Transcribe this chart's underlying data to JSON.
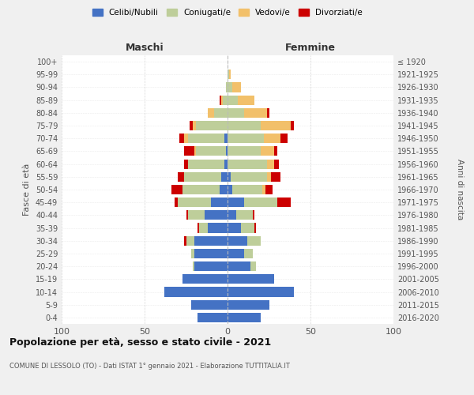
{
  "age_groups": [
    "0-4",
    "5-9",
    "10-14",
    "15-19",
    "20-24",
    "25-29",
    "30-34",
    "35-39",
    "40-44",
    "45-49",
    "50-54",
    "55-59",
    "60-64",
    "65-69",
    "70-74",
    "75-79",
    "80-84",
    "85-89",
    "90-94",
    "95-99",
    "100+"
  ],
  "birth_years": [
    "2016-2020",
    "2011-2015",
    "2006-2010",
    "2001-2005",
    "1996-2000",
    "1991-1995",
    "1986-1990",
    "1981-1985",
    "1976-1980",
    "1971-1975",
    "1966-1970",
    "1961-1965",
    "1956-1960",
    "1951-1955",
    "1946-1950",
    "1941-1945",
    "1936-1940",
    "1931-1935",
    "1926-1930",
    "1921-1925",
    "≤ 1920"
  ],
  "colors": {
    "celibi": "#4472C4",
    "coniugati": "#BECE9A",
    "vedovi": "#F2C06A",
    "divorziati": "#CC0000"
  },
  "maschi": {
    "celibi": [
      18,
      22,
      38,
      27,
      20,
      20,
      20,
      12,
      14,
      10,
      5,
      4,
      2,
      1,
      2,
      0,
      0,
      0,
      0,
      0,
      0
    ],
    "coniugati": [
      0,
      0,
      0,
      0,
      1,
      2,
      5,
      5,
      10,
      20,
      22,
      22,
      22,
      18,
      22,
      19,
      8,
      3,
      1,
      0,
      0
    ],
    "vedovi": [
      0,
      0,
      0,
      0,
      0,
      0,
      0,
      0,
      0,
      0,
      0,
      0,
      0,
      1,
      2,
      2,
      4,
      1,
      0,
      0,
      0
    ],
    "divorziati": [
      0,
      0,
      0,
      0,
      0,
      0,
      1,
      1,
      1,
      2,
      7,
      4,
      2,
      6,
      3,
      2,
      0,
      1,
      0,
      0,
      0
    ]
  },
  "femmine": {
    "nubili": [
      20,
      25,
      40,
      28,
      14,
      10,
      12,
      8,
      5,
      10,
      3,
      2,
      0,
      0,
      0,
      0,
      0,
      0,
      0,
      0,
      0
    ],
    "coniugate": [
      0,
      0,
      0,
      0,
      3,
      5,
      8,
      8,
      10,
      20,
      18,
      22,
      24,
      20,
      22,
      20,
      10,
      6,
      3,
      1,
      0
    ],
    "vedove": [
      0,
      0,
      0,
      0,
      0,
      0,
      0,
      0,
      0,
      0,
      2,
      2,
      4,
      8,
      10,
      18,
      14,
      10,
      5,
      1,
      0
    ],
    "divorziate": [
      0,
      0,
      0,
      0,
      0,
      0,
      0,
      1,
      1,
      8,
      4,
      6,
      3,
      2,
      4,
      2,
      1,
      0,
      0,
      0,
      0
    ]
  },
  "title": "Popolazione per età, sesso e stato civile - 2021",
  "subtitle": "COMUNE DI LESSOLO (TO) - Dati ISTAT 1° gennaio 2021 - Elaborazione TUTTITALIA.IT",
  "xlabel_left": "Maschi",
  "xlabel_right": "Femmine",
  "ylabel_left": "Fasce di età",
  "ylabel_right": "Anni di nascita",
  "legend_labels": [
    "Celibi/Nubili",
    "Coniugati/e",
    "Vedovi/e",
    "Divorziati/e"
  ],
  "xlim": 100,
  "background_color": "#F0F0F0",
  "plot_background": "#FFFFFF"
}
